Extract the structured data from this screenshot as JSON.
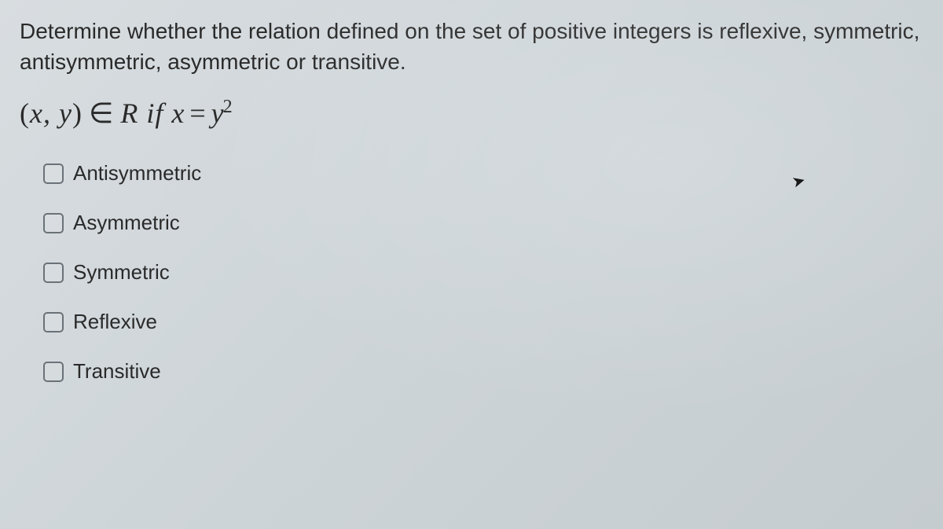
{
  "question": {
    "text": "Determine whether the relation defined on the set of positive integers is reflexive, symmetric, antisymmetric, asymmetric or transitive.",
    "formula_parts": {
      "open_paren": "(",
      "var_x": "x",
      "comma": ", ",
      "var_y": "y",
      "close_paren": ")",
      "element_of": "∈",
      "set_R": "R",
      "if_text": " if ",
      "lhs": "x",
      "equals": "=",
      "rhs_base": "y",
      "rhs_exp": "2"
    }
  },
  "options": [
    {
      "label": "Antisymmetric",
      "checked": false
    },
    {
      "label": "Asymmetric",
      "checked": false
    },
    {
      "label": "Symmetric",
      "checked": false
    },
    {
      "label": "Reflexive",
      "checked": false
    },
    {
      "label": "Transitive",
      "checked": false
    }
  ],
  "styling": {
    "background_gradient": [
      "#d8dde0",
      "#cdd4d8",
      "#c5ccd0"
    ],
    "text_color": "#2a2a2a",
    "checkbox_border": "#6a7278",
    "question_fontsize": 28,
    "formula_fontsize": 36,
    "option_fontsize": 26,
    "checkbox_size": 26,
    "option_gap": 32
  },
  "cursor_glyph": "➤"
}
